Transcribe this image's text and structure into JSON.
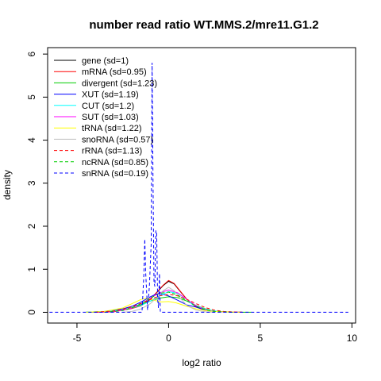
{
  "chart_data": {
    "type": "line",
    "title": "number read ratio WT.MMS.2/mre11.G1.2",
    "xlabel": "log2 ratio",
    "ylabel": "density",
    "xlim": [
      -6.6,
      10.2
    ],
    "ylim": [
      -0.25,
      6.15
    ],
    "x_ticks": [
      -5,
      0,
      5,
      10
    ],
    "x_tick_labels": [
      "-5",
      "0",
      "5",
      "10"
    ],
    "y_ticks": [
      0,
      1,
      2,
      3,
      4,
      5,
      6
    ],
    "y_tick_labels": [
      "0",
      "1",
      "2",
      "3",
      "4",
      "5",
      "6"
    ],
    "grid": false,
    "legend_position": "top-left",
    "series": [
      {
        "name": "gene (sd=1)",
        "color": "#000000",
        "dash": "solid",
        "x": [
          -4.5,
          -3.5,
          -2.5,
          -2.0,
          -1.5,
          -1.0,
          -0.6,
          -0.3,
          0.0,
          0.3,
          0.6,
          1.0,
          1.5,
          2.0,
          2.5,
          3.0,
          4.0
        ],
        "y": [
          0.0,
          0.01,
          0.05,
          0.1,
          0.16,
          0.3,
          0.48,
          0.62,
          0.72,
          0.66,
          0.5,
          0.3,
          0.13,
          0.05,
          0.02,
          0.01,
          0.0
        ]
      },
      {
        "name": "mRNA (sd=0.95)",
        "color": "#ff0000",
        "dash": "solid",
        "x": [
          -4.0,
          -3.0,
          -2.0,
          -1.5,
          -1.0,
          -0.6,
          -0.3,
          0.0,
          0.3,
          0.6,
          1.0,
          1.5,
          2.0,
          2.5,
          3.0,
          4.0
        ],
        "y": [
          0.0,
          0.01,
          0.09,
          0.15,
          0.3,
          0.49,
          0.63,
          0.74,
          0.67,
          0.51,
          0.3,
          0.12,
          0.05,
          0.02,
          0.01,
          0.0
        ]
      },
      {
        "name": "divergent (sd=1.23)",
        "color": "#00cd00",
        "dash": "solid",
        "x": [
          -4.5,
          -3.5,
          -2.5,
          -2.0,
          -1.5,
          -1.0,
          -0.5,
          0.0,
          0.5,
          1.0,
          1.5,
          2.0,
          2.5,
          3.0,
          3.5,
          4.5
        ],
        "y": [
          0.0,
          0.02,
          0.06,
          0.11,
          0.18,
          0.26,
          0.33,
          0.36,
          0.34,
          0.26,
          0.16,
          0.08,
          0.03,
          0.01,
          0.0,
          0.0
        ]
      },
      {
        "name": "XUT (sd=1.19)",
        "color": "#0000ff",
        "dash": "solid",
        "x": [
          -4.5,
          -3.5,
          -2.5,
          -2.0,
          -1.5,
          -1.0,
          -0.7,
          -0.5,
          0.0,
          0.5,
          1.0,
          1.5,
          2.0,
          2.5,
          3.0,
          4.0
        ],
        "y": [
          0.0,
          0.02,
          0.08,
          0.14,
          0.24,
          0.36,
          0.42,
          0.44,
          0.38,
          0.28,
          0.17,
          0.12,
          0.05,
          0.02,
          0.01,
          0.0
        ]
      },
      {
        "name": "CUT (sd=1.2)",
        "color": "#00ffff",
        "dash": "solid",
        "x": [
          -4.5,
          -3.5,
          -2.5,
          -2.0,
          -1.5,
          -1.0,
          -0.5,
          0.0,
          0.5,
          1.0,
          1.3,
          1.6,
          2.0,
          2.5,
          3.0,
          4.0
        ],
        "y": [
          0.0,
          0.02,
          0.06,
          0.1,
          0.16,
          0.26,
          0.38,
          0.48,
          0.44,
          0.3,
          0.18,
          0.14,
          0.07,
          0.03,
          0.01,
          0.0
        ]
      },
      {
        "name": "SUT (sd=1.03)",
        "color": "#ff00ff",
        "dash": "solid",
        "x": [
          -4.0,
          -3.0,
          -2.5,
          -2.0,
          -1.5,
          -1.0,
          -0.5,
          0.0,
          0.5,
          1.0,
          1.5,
          2.0,
          2.5,
          3.0,
          4.0
        ],
        "y": [
          0.0,
          0.02,
          0.05,
          0.1,
          0.2,
          0.33,
          0.45,
          0.52,
          0.45,
          0.3,
          0.15,
          0.06,
          0.02,
          0.01,
          0.0
        ]
      },
      {
        "name": "tRNA (sd=1.22)",
        "color": "#ffff00",
        "dash": "solid",
        "x": [
          -4.5,
          -3.5,
          -2.5,
          -2.0,
          -1.5,
          -1.2,
          -0.8,
          -0.4,
          0.0,
          0.4,
          1.0,
          1.5,
          2.0,
          2.5,
          3.0,
          4.0
        ],
        "y": [
          0.0,
          0.02,
          0.1,
          0.2,
          0.3,
          0.33,
          0.28,
          0.24,
          0.25,
          0.22,
          0.14,
          0.08,
          0.04,
          0.02,
          0.01,
          0.0
        ]
      },
      {
        "name": "snoRNA (sd=0.57)",
        "color": "#bebebe",
        "dash": "solid",
        "x": [
          -2.5,
          -2.0,
          -1.5,
          -1.0,
          -0.6,
          -0.3,
          0.0,
          0.3,
          0.6,
          1.0,
          1.5,
          2.0,
          2.5
        ],
        "y": [
          0.0,
          0.02,
          0.08,
          0.2,
          0.36,
          0.5,
          0.58,
          0.5,
          0.34,
          0.16,
          0.05,
          0.01,
          0.0
        ]
      },
      {
        "name": "rRNA (sd=1.13)",
        "color": "#ff0000",
        "dash": "dashed",
        "x": [
          -4.0,
          -3.0,
          -2.5,
          -2.0,
          -1.5,
          -1.0,
          -0.5,
          0.0,
          0.5,
          1.0,
          1.5,
          2.0,
          2.5,
          3.0,
          4.0
        ],
        "y": [
          0.0,
          0.03,
          0.07,
          0.13,
          0.21,
          0.3,
          0.38,
          0.42,
          0.38,
          0.3,
          0.2,
          0.11,
          0.05,
          0.02,
          0.0
        ]
      },
      {
        "name": "ncRNA (sd=0.85)",
        "color": "#00cd00",
        "dash": "dashed",
        "x": [
          -3.5,
          -2.5,
          -2.0,
          -1.5,
          -1.0,
          -0.5,
          0.0,
          0.5,
          1.0,
          1.5,
          2.0,
          2.5,
          3.5
        ],
        "y": [
          0.0,
          0.04,
          0.1,
          0.2,
          0.33,
          0.44,
          0.47,
          0.4,
          0.27,
          0.14,
          0.06,
          0.02,
          0.0
        ]
      },
      {
        "name": "snRNA (sd=0.19)",
        "color": "#0000ff",
        "dash": "dashed",
        "x": [
          -6.5,
          -1.45,
          -1.35,
          -1.3,
          -1.25,
          -1.15,
          -1.05,
          -0.95,
          -0.9,
          -0.85,
          -0.8,
          -0.75,
          -0.7,
          -0.65,
          -0.6,
          -0.55,
          -0.5,
          -0.45,
          -0.4,
          9.8
        ],
        "y": [
          0.0,
          0.0,
          0.9,
          1.7,
          0.9,
          0.05,
          0.6,
          1.6,
          5.8,
          3.0,
          0.7,
          0.6,
          1.9,
          1.85,
          0.3,
          0.1,
          0.9,
          0.0,
          0.0,
          0.0
        ]
      }
    ]
  }
}
